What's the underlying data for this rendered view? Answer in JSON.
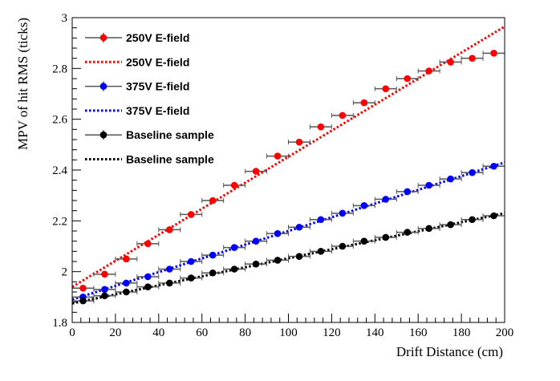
{
  "chart_data": {
    "type": "scatter",
    "xlabel": "Drift Distance (cm)",
    "ylabel": "MPV of hit RMS (ticks)",
    "xlim": [
      0,
      200
    ],
    "ylim": [
      1.8,
      3.0
    ],
    "x_ticks": [
      0,
      20,
      40,
      60,
      80,
      100,
      120,
      140,
      160,
      180,
      200
    ],
    "y_ticks": [
      1.8,
      2.0,
      2.2,
      2.4,
      2.6,
      2.8,
      3.0
    ],
    "x_tick_labels": [
      "0",
      "20",
      "40",
      "60",
      "80",
      "100",
      "120",
      "140",
      "160",
      "180",
      "200"
    ],
    "y_tick_labels": [
      "1.8",
      "2",
      "2.2",
      "2.4",
      "2.6",
      "2.8",
      "3"
    ],
    "grid": false,
    "legend_position": "top-left",
    "x": [
      5,
      15,
      25,
      35,
      45,
      55,
      65,
      75,
      85,
      95,
      105,
      115,
      125,
      135,
      145,
      155,
      165,
      175,
      185,
      195
    ],
    "x_error": 5,
    "series": [
      {
        "name": "250V E-field",
        "color": "#ff0000",
        "kind": "points",
        "values": [
          1.935,
          1.99,
          2.05,
          2.11,
          2.165,
          2.225,
          2.28,
          2.34,
          2.395,
          2.455,
          2.51,
          2.57,
          2.615,
          2.665,
          2.72,
          2.76,
          2.79,
          2.825,
          2.84,
          2.86
        ]
      },
      {
        "name": "250V E-field",
        "color": "#ff0000",
        "kind": "fit",
        "x": [
          0,
          200
        ],
        "values": [
          1.94,
          2.965
        ]
      },
      {
        "name": "375V E-field",
        "color": "#0000ff",
        "kind": "points",
        "values": [
          1.9,
          1.93,
          1.955,
          1.98,
          2.01,
          2.04,
          2.065,
          2.095,
          2.12,
          2.15,
          2.175,
          2.205,
          2.23,
          2.26,
          2.285,
          2.315,
          2.34,
          2.365,
          2.39,
          2.415
        ]
      },
      {
        "name": "375V E-field",
        "color": "#0000ff",
        "kind": "fit",
        "x": [
          0,
          200
        ],
        "values": [
          1.89,
          2.43
        ]
      },
      {
        "name": "Baseline sample",
        "color": "#000000",
        "kind": "points",
        "values": [
          1.885,
          1.905,
          1.92,
          1.94,
          1.955,
          1.975,
          1.995,
          2.01,
          2.03,
          2.045,
          2.06,
          2.08,
          2.1,
          2.12,
          2.135,
          2.155,
          2.17,
          2.185,
          2.205,
          2.22
        ]
      },
      {
        "name": "Baseline sample",
        "color": "#000000",
        "kind": "fit",
        "x": [
          0,
          200
        ],
        "values": [
          1.875,
          2.23
        ]
      }
    ]
  }
}
